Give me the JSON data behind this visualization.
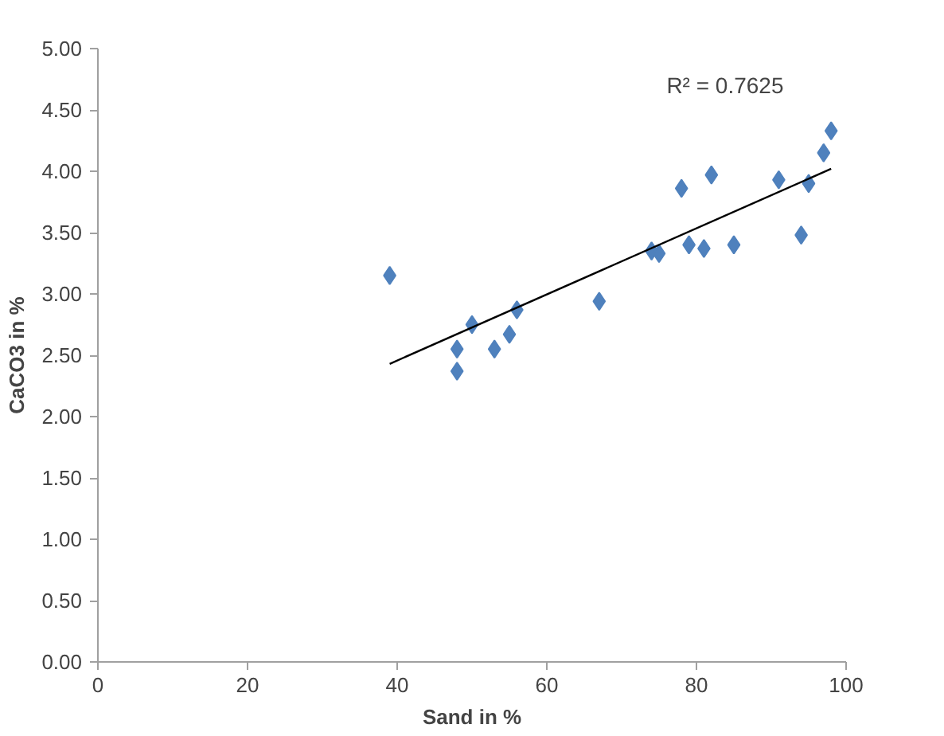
{
  "chart_data": {
    "type": "scatter",
    "xlabel": "Sand in %",
    "ylabel": "CaCO3 in %",
    "xlim": [
      0,
      100
    ],
    "ylim": [
      0,
      5
    ],
    "xticks": [
      0,
      20,
      40,
      60,
      80,
      100
    ],
    "yticks": [
      {
        "value": 0,
        "label": "0.00"
      },
      {
        "value": 0.5,
        "label": "0.50"
      },
      {
        "value": 1,
        "label": "1.00"
      },
      {
        "value": 1.5,
        "label": "1.50"
      },
      {
        "value": 2,
        "label": "2.00"
      },
      {
        "value": 2.5,
        "label": "2.50"
      },
      {
        "value": 3,
        "label": "3.00"
      },
      {
        "value": 3.5,
        "label": "3.50"
      },
      {
        "value": 4,
        "label": "4.00"
      },
      {
        "value": 4.5,
        "label": "4.50"
      },
      {
        "value": 5,
        "label": "5.00"
      }
    ],
    "grid": false,
    "series": [
      {
        "marker": "diamond",
        "color": "#4f81bd",
        "x": [
          39,
          48,
          48,
          50,
          53,
          55,
          56,
          67,
          74,
          75,
          78,
          79,
          81,
          82,
          85,
          91,
          94,
          95,
          97,
          98
        ],
        "values": [
          3.15,
          2.55,
          2.37,
          2.75,
          2.55,
          2.67,
          2.87,
          2.94,
          3.35,
          3.33,
          3.86,
          3.4,
          3.37,
          3.97,
          3.4,
          3.93,
          3.48,
          3.9,
          4.15,
          4.33
        ]
      },
      {
        "type": "line",
        "color": "#000000",
        "x": [
          39,
          98
        ],
        "values": [
          2.43,
          4.02
        ]
      }
    ],
    "annotations": [
      "R² = 0.7625"
    ]
  }
}
